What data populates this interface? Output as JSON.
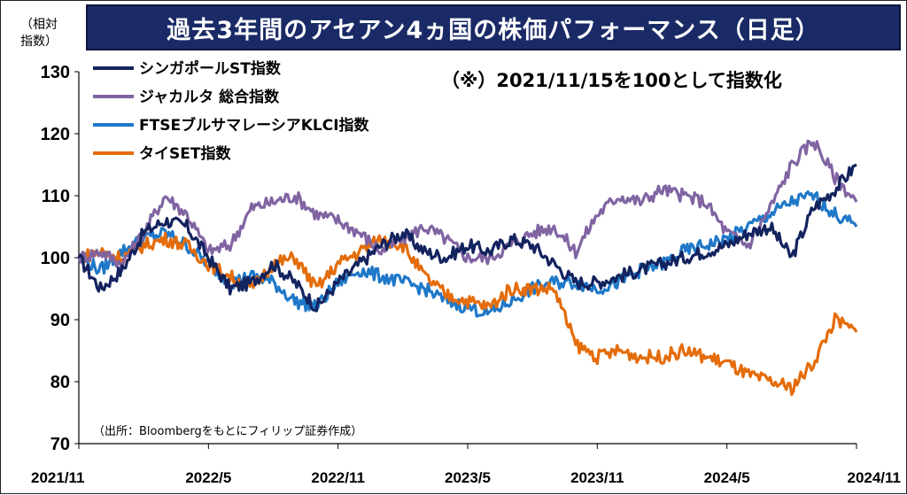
{
  "chart_data": {
    "type": "line",
    "title": "過去3年間のアセアン4ヵ国の株価パフォーマンス（日足）",
    "ylabel": "（相対\n指数）",
    "annotation": "（※）2021/11/15を100として指数化",
    "source": "（出所：Bloombergをもとにフィリップ証券作成）",
    "ylim": [
      70,
      130
    ],
    "yticks": [
      70,
      80,
      90,
      100,
      110,
      120,
      130
    ],
    "xlim": [
      "2021-11",
      "2024-11"
    ],
    "xticks": [
      "2021/11",
      "2022/5",
      "2022/11",
      "2023/5",
      "2023/11",
      "2024/5",
      "2024/11"
    ],
    "x": [
      "2021-11",
      "2021-12",
      "2022-01",
      "2022-02",
      "2022-03",
      "2022-04",
      "2022-05",
      "2022-06",
      "2022-07",
      "2022-08",
      "2022-09",
      "2022-10",
      "2022-11",
      "2022-12",
      "2023-01",
      "2023-02",
      "2023-03",
      "2023-04",
      "2023-05",
      "2023-06",
      "2023-07",
      "2023-08",
      "2023-09",
      "2023-10",
      "2023-11",
      "2023-12",
      "2024-01",
      "2024-02",
      "2024-03",
      "2024-04",
      "2024-05",
      "2024-06",
      "2024-07",
      "2024-08",
      "2024-09",
      "2024-10",
      "2024-11"
    ],
    "legend_position": "top-left",
    "grid": false,
    "series": [
      {
        "name": "シンガポールST指数",
        "color": "#13235e",
        "values": [
          100,
          95,
          98,
          104,
          106,
          105,
          100,
          95,
          96,
          99,
          96,
          92,
          96,
          99,
          102,
          104,
          101,
          100,
          102,
          101,
          103,
          102,
          99,
          96,
          96,
          97,
          98,
          99,
          100,
          101,
          102,
          104,
          105,
          100,
          108,
          111,
          115
        ]
      },
      {
        "name": "ジャカルタ 総合指数",
        "color": "#8064a2",
        "values": [
          100,
          101,
          99,
          104,
          110,
          107,
          101,
          102,
          108,
          109,
          110,
          107,
          106,
          104,
          101,
          103,
          105,
          103,
          100,
          100,
          102,
          104,
          105,
          101,
          107,
          110,
          109,
          111,
          110,
          109,
          104,
          102,
          108,
          115,
          119,
          113,
          109
        ]
      },
      {
        "name": "FTSEブルサマレーシアKLCI指数",
        "color": "#1f78c8",
        "values": [
          100,
          98,
          101,
          103,
          104,
          102,
          99,
          96,
          97,
          96,
          93,
          92,
          96,
          98,
          97,
          96,
          95,
          93,
          92,
          91,
          93,
          95,
          96,
          96,
          95,
          96,
          98,
          99,
          101,
          102,
          103,
          105,
          107,
          109,
          110,
          107,
          105
        ]
      },
      {
        "name": "タイSET指数",
        "color": "#e46c0a",
        "values": [
          100,
          101,
          100,
          102,
          103,
          102,
          99,
          97,
          95,
          99,
          100,
          95,
          99,
          101,
          103,
          102,
          97,
          94,
          93,
          92,
          95,
          95,
          95,
          86,
          84,
          85,
          84,
          84,
          85,
          84,
          83,
          81,
          80,
          79,
          83,
          90,
          88
        ]
      }
    ]
  }
}
